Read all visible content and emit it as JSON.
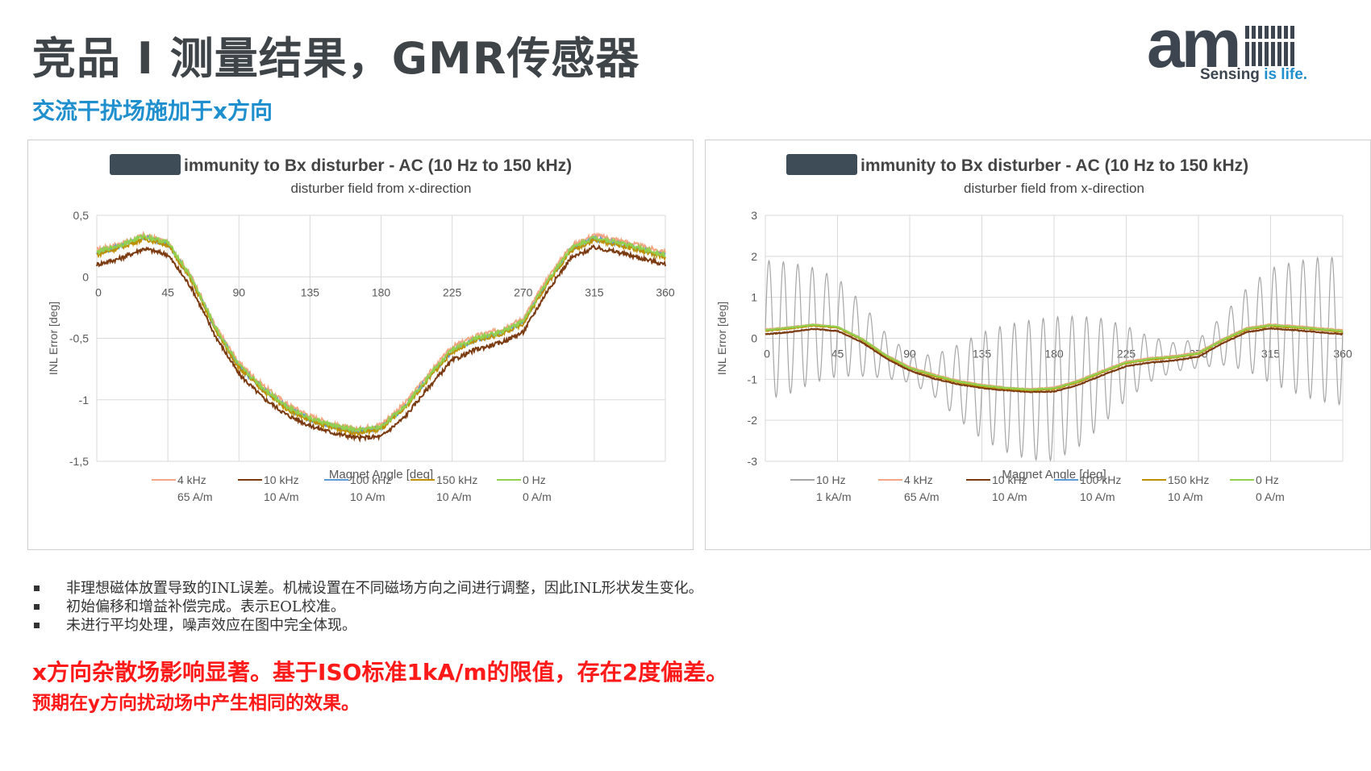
{
  "slide": {
    "title": "竞品 I 测量结果，GMR传感器",
    "subtitle": "交流干扰场施加于x方向",
    "logo": {
      "word": "am",
      "tag_part1": "Sensing ",
      "tag_part2": "is life."
    },
    "bullets": [
      "非理想磁体放置导致的INL误差。机械设置在不同磁场方向之间进行调整，因此INL形状发生变化。",
      "初始偏移和增益补偿完成。表示EOL校准。",
      "未进行平均处理，噪声效应在图中完全体现。"
    ],
    "conclusion_line1": "x方向杂散场影响显著。基于ISO标准1kA/m的限值，存在2度偏差。",
    "conclusion_line2": "预期在y方向扰动场中产生相同的效果。"
  },
  "colors": {
    "title": "#3f4448",
    "accent": "#1f8fce",
    "conclusion": "#ff1a1a",
    "s_10hz": "#a6a6a6",
    "s_4khz": "#f4a582",
    "s_10khz": "#7b3a10",
    "s_100khz": "#5b9bd5",
    "s_150khz": "#bf8f00",
    "s_0hz": "#92d050"
  },
  "chart_data": [
    {
      "type": "line",
      "title": "immunity to Bx disturber - AC (10 Hz to 150 kHz)",
      "subtitle": "disturber field from x-direction",
      "xlabel": "Magnet Angle [deg]",
      "ylabel": "INL Error [deg]",
      "xlim": [
        0,
        360
      ],
      "ylim": [
        -1.5,
        0.5
      ],
      "xticks": [
        0,
        45,
        90,
        135,
        180,
        225,
        270,
        315,
        360
      ],
      "xtick_labels": [
        "0",
        "45",
        "90",
        "135",
        "180",
        "225",
        "270",
        "315",
        "360"
      ],
      "yticks": [
        0.5,
        0,
        -0.5,
        -1,
        -1.5
      ],
      "ytick_labels": [
        "0,5",
        "0",
        "-0,5",
        "-1",
        "-1,5"
      ],
      "grid": true,
      "legend_position": "bottom",
      "x": [
        0,
        15,
        30,
        45,
        60,
        75,
        90,
        105,
        120,
        135,
        150,
        165,
        180,
        195,
        210,
        225,
        240,
        255,
        270,
        285,
        300,
        315,
        330,
        345,
        360
      ],
      "series": [
        {
          "name": "4 kHz",
          "sublabel": "65 A/m",
          "color_key": "s_4khz",
          "values": [
            0.22,
            0.27,
            0.34,
            0.28,
            0.0,
            -0.4,
            -0.7,
            -0.88,
            -1.03,
            -1.13,
            -1.2,
            -1.24,
            -1.2,
            -1.03,
            -0.79,
            -0.57,
            -0.48,
            -0.43,
            -0.34,
            -0.02,
            0.25,
            0.34,
            0.3,
            0.25,
            0.2
          ]
        },
        {
          "name": "10 kHz",
          "sublabel": "10 A/m",
          "color_key": "s_10khz",
          "values": [
            0.1,
            0.15,
            0.23,
            0.18,
            -0.09,
            -0.48,
            -0.79,
            -0.98,
            -1.12,
            -1.21,
            -1.27,
            -1.31,
            -1.3,
            -1.14,
            -0.9,
            -0.68,
            -0.59,
            -0.54,
            -0.45,
            -0.12,
            0.15,
            0.24,
            0.2,
            0.15,
            0.1
          ]
        },
        {
          "name": "100 kHz",
          "sublabel": "10 A/m",
          "color_key": "s_100khz",
          "values": [
            0.19,
            0.25,
            0.32,
            0.27,
            -0.02,
            -0.42,
            -0.73,
            -0.91,
            -1.06,
            -1.16,
            -1.22,
            -1.26,
            -1.23,
            -1.06,
            -0.82,
            -0.6,
            -0.51,
            -0.46,
            -0.37,
            -0.05,
            0.22,
            0.31,
            0.27,
            0.22,
            0.17
          ]
        },
        {
          "name": "150 kHz",
          "sublabel": "10 A/m",
          "color_key": "s_150khz",
          "values": [
            0.18,
            0.24,
            0.31,
            0.26,
            -0.03,
            -0.43,
            -0.74,
            -0.92,
            -1.07,
            -1.17,
            -1.23,
            -1.27,
            -1.24,
            -1.07,
            -0.83,
            -0.61,
            -0.52,
            -0.47,
            -0.38,
            -0.06,
            0.21,
            0.3,
            0.26,
            0.21,
            0.16
          ]
        },
        {
          "name": "0 Hz",
          "sublabel": "0 A/m",
          "color_key": "s_0hz",
          "values": [
            0.2,
            0.26,
            0.33,
            0.28,
            -0.01,
            -0.41,
            -0.72,
            -0.9,
            -1.05,
            -1.15,
            -1.21,
            -1.25,
            -1.22,
            -1.05,
            -0.81,
            -0.59,
            -0.5,
            -0.45,
            -0.36,
            -0.04,
            0.23,
            0.32,
            0.28,
            0.23,
            0.18
          ]
        }
      ]
    },
    {
      "type": "line",
      "title": "immunity to Bx disturber - AC (10 Hz to 150 kHz)",
      "subtitle": "disturber field from x-direction",
      "xlabel": "Magnet Angle [deg]",
      "ylabel": "INL Error [deg]",
      "xlim": [
        0,
        360
      ],
      "ylim": [
        -3,
        3
      ],
      "xticks": [
        0,
        45,
        90,
        135,
        180,
        225,
        270,
        315,
        360
      ],
      "xtick_labels": [
        "0",
        "45",
        "90",
        "135",
        "180",
        "225",
        "270",
        "315",
        "360"
      ],
      "yticks": [
        3,
        2,
        1,
        0,
        -1,
        -2,
        -3
      ],
      "ytick_labels": [
        "3",
        "2",
        "1",
        "0",
        "-1",
        "-2",
        "-3"
      ],
      "grid": true,
      "legend_position": "bottom",
      "x": [
        0,
        15,
        30,
        45,
        60,
        75,
        90,
        105,
        120,
        135,
        150,
        165,
        180,
        195,
        210,
        225,
        240,
        255,
        270,
        285,
        300,
        315,
        330,
        345,
        360
      ],
      "series": [
        {
          "name": "10 Hz",
          "sublabel": "1 kA/m",
          "color_key": "s_10hz",
          "oscillating": true,
          "oscillation_period_deg": 9,
          "center_values": [
            0.2,
            0.25,
            0.32,
            0.27,
            -0.02,
            -0.42,
            -0.73,
            -0.91,
            -1.06,
            -1.16,
            -1.22,
            -1.26,
            -1.23,
            -1.06,
            -0.82,
            -0.6,
            -0.51,
            -0.46,
            -0.37,
            -0.05,
            0.22,
            0.31,
            0.27,
            0.22,
            0.17
          ],
          "amplitude_values": [
            1.7,
            1.6,
            1.4,
            1.2,
            0.9,
            0.55,
            0.35,
            0.5,
            0.9,
            1.3,
            1.55,
            1.7,
            1.75,
            1.6,
            1.3,
            0.9,
            0.55,
            0.35,
            0.35,
            0.6,
            1.0,
            1.4,
            1.6,
            1.75,
            1.8
          ]
        },
        {
          "name": "4 kHz",
          "sublabel": "65 A/m",
          "color_key": "s_4khz",
          "values": [
            0.22,
            0.27,
            0.34,
            0.28,
            0.0,
            -0.4,
            -0.7,
            -0.88,
            -1.03,
            -1.13,
            -1.2,
            -1.24,
            -1.2,
            -1.03,
            -0.79,
            -0.57,
            -0.48,
            -0.43,
            -0.34,
            -0.02,
            0.25,
            0.34,
            0.3,
            0.25,
            0.2
          ]
        },
        {
          "name": "10 kHz",
          "sublabel": "10 A/m",
          "color_key": "s_10khz",
          "values": [
            0.1,
            0.15,
            0.23,
            0.18,
            -0.09,
            -0.48,
            -0.79,
            -0.98,
            -1.12,
            -1.21,
            -1.27,
            -1.31,
            -1.3,
            -1.14,
            -0.9,
            -0.68,
            -0.59,
            -0.54,
            -0.45,
            -0.12,
            0.15,
            0.24,
            0.2,
            0.15,
            0.1
          ]
        },
        {
          "name": "100 kHz",
          "sublabel": "10 A/m",
          "color_key": "s_100khz",
          "values": [
            0.19,
            0.25,
            0.32,
            0.27,
            -0.02,
            -0.42,
            -0.73,
            -0.91,
            -1.06,
            -1.16,
            -1.22,
            -1.26,
            -1.23,
            -1.06,
            -0.82,
            -0.6,
            -0.51,
            -0.46,
            -0.37,
            -0.05,
            0.22,
            0.31,
            0.27,
            0.22,
            0.17
          ]
        },
        {
          "name": "150 kHz",
          "sublabel": "10 A/m",
          "color_key": "s_150khz",
          "values": [
            0.18,
            0.24,
            0.31,
            0.26,
            -0.03,
            -0.43,
            -0.74,
            -0.92,
            -1.07,
            -1.17,
            -1.23,
            -1.27,
            -1.24,
            -1.07,
            -0.83,
            -0.61,
            -0.52,
            -0.47,
            -0.38,
            -0.06,
            0.21,
            0.3,
            0.26,
            0.21,
            0.16
          ]
        },
        {
          "name": "0 Hz",
          "sublabel": "0 A/m",
          "color_key": "s_0hz",
          "values": [
            0.2,
            0.26,
            0.33,
            0.28,
            -0.01,
            -0.41,
            -0.72,
            -0.9,
            -1.05,
            -1.15,
            -1.21,
            -1.25,
            -1.22,
            -1.05,
            -0.81,
            -0.59,
            -0.5,
            -0.45,
            -0.36,
            -0.04,
            0.23,
            0.32,
            0.28,
            0.23,
            0.18
          ]
        }
      ]
    }
  ]
}
